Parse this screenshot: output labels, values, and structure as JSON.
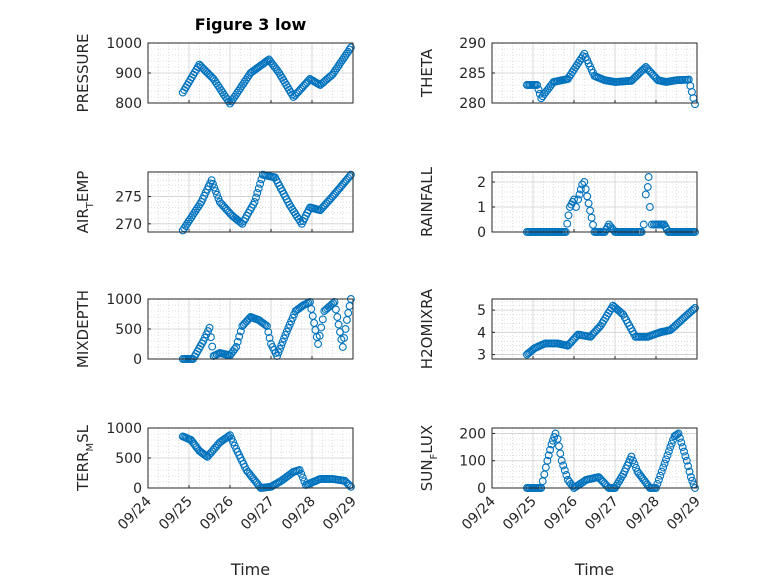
{
  "figure": {
    "title": "Figure 3 low",
    "x_axis_label": "Time",
    "x_tick_labels": [
      "09/24",
      "09/25",
      "09/26",
      "09/27",
      "09/28",
      "09/29"
    ],
    "marker_color": "#0072bd"
  },
  "chart_data": [
    {
      "type": "scatter",
      "ylabel": "PRESSURE",
      "ylim": [
        800,
        1000
      ],
      "yticks": [
        800,
        900,
        1000
      ],
      "xlim": [
        "09/24",
        "09/29"
      ],
      "grid": true,
      "x": [
        0.85,
        1.25,
        1.6,
        2.0,
        2.5,
        2.95,
        3.2,
        3.55,
        3.95,
        4.2,
        4.5,
        4.95
      ],
      "y": [
        835,
        928,
        880,
        798,
        900,
        945,
        900,
        820,
        880,
        860,
        895,
        985
      ],
      "title": "Figure 3 low"
    },
    {
      "type": "scatter",
      "ylabel": "THETA",
      "ylim": [
        280,
        290
      ],
      "yticks": [
        280,
        285,
        290
      ],
      "xlim": [
        "09/24",
        "09/29"
      ],
      "grid": true,
      "x": [
        0.85,
        1.1,
        1.2,
        1.5,
        1.85,
        2.25,
        2.5,
        2.75,
        3.0,
        3.4,
        3.75,
        4.05,
        4.25,
        4.5,
        4.8,
        4.95
      ],
      "y": [
        283,
        283,
        280.8,
        283.5,
        284,
        288.2,
        284.5,
        283.8,
        283.5,
        283.7,
        286,
        283.8,
        283.5,
        283.8,
        283.9,
        279.8
      ]
    },
    {
      "type": "scatter",
      "ylabel": "AIR_TEMP",
      "ylabel_parts": [
        "AIR",
        "T",
        "EMP"
      ],
      "ylim": [
        268.5,
        279.5
      ],
      "yticks": [
        270,
        275,
        280
      ],
      "xlim": [
        "09/24",
        "09/29"
      ],
      "grid": true,
      "x": [
        0.85,
        1.3,
        1.55,
        1.75,
        2.05,
        2.3,
        2.6,
        2.8,
        3.1,
        3.45,
        3.75,
        3.95,
        4.2,
        4.5,
        4.95
      ],
      "y": [
        268.8,
        274,
        278,
        274,
        271.5,
        270,
        274,
        279,
        278.5,
        273.5,
        270,
        273,
        272.5,
        275,
        279
      ]
    },
    {
      "type": "scatter",
      "ylabel": "RAINFALL",
      "ylim": [
        0,
        2.4
      ],
      "yticks": [
        0,
        1,
        2
      ],
      "xlim": [
        "09/24",
        "09/29"
      ],
      "grid": true,
      "x": [
        0.85,
        1.4,
        1.8,
        1.9,
        2.0,
        2.05,
        2.1,
        2.2,
        2.25,
        2.5,
        2.75,
        2.85,
        3.0,
        3.1,
        3.2,
        3.4,
        3.5,
        3.55,
        3.65,
        3.7,
        3.75,
        3.8,
        3.82,
        3.85,
        3.9,
        3.95,
        4.1,
        4.2,
        4.3,
        4.5,
        4.95
      ],
      "y": [
        0,
        0,
        0,
        1.0,
        1.3,
        1.0,
        1.3,
        1.9,
        2.0,
        0,
        0,
        0.3,
        0,
        0,
        0,
        0,
        0,
        0,
        0,
        0.3,
        1.5,
        1.8,
        2.2,
        1.0,
        0.3,
        0.3,
        0.3,
        0.3,
        0,
        0,
        0
      ]
    },
    {
      "type": "scatter",
      "ylabel": "MIXDEPTH",
      "ylim": [
        0,
        1000
      ],
      "yticks": [
        0,
        500,
        1000
      ],
      "xlim": [
        "09/24",
        "09/29"
      ],
      "grid": true,
      "x": [
        0.85,
        1.1,
        1.35,
        1.5,
        1.6,
        1.75,
        2.0,
        2.15,
        2.3,
        2.5,
        2.7,
        2.9,
        3.0,
        3.15,
        3.35,
        3.6,
        3.8,
        3.95,
        4.15,
        4.3,
        4.55,
        4.75,
        4.85,
        4.95
      ],
      "y": [
        0,
        0,
        300,
        520,
        50,
        100,
        60,
        200,
        550,
        700,
        650,
        550,
        250,
        50,
        400,
        800,
        900,
        950,
        250,
        800,
        950,
        200,
        650,
        1000
      ]
    },
    {
      "type": "scatter",
      "ylabel": "H2OMIXRA",
      "ylim": [
        2.8,
        5.5
      ],
      "yticks": [
        3,
        4,
        5
      ],
      "xlim": [
        "09/24",
        "09/29"
      ],
      "grid": true,
      "x": [
        0.85,
        1.05,
        1.3,
        1.6,
        1.85,
        2.1,
        2.4,
        2.65,
        2.95,
        3.2,
        3.5,
        3.8,
        4.1,
        4.35,
        4.65,
        4.95
      ],
      "y": [
        3.0,
        3.3,
        3.5,
        3.5,
        3.4,
        3.9,
        3.8,
        4.3,
        5.2,
        4.8,
        3.8,
        3.8,
        4.0,
        4.1,
        4.6,
        5.1
      ]
    },
    {
      "type": "scatter",
      "ylabel": "TERR_MSL",
      "ylabel_parts": [
        "TERR",
        "M",
        "SL"
      ],
      "ylim": [
        0,
        1000
      ],
      "yticks": [
        0,
        500,
        1000
      ],
      "xlim": [
        "09/24",
        "09/29"
      ],
      "grid": true,
      "x": [
        0.85,
        1.05,
        1.25,
        1.45,
        1.75,
        2.0,
        2.15,
        2.4,
        2.75,
        3.0,
        3.25,
        3.55,
        3.7,
        3.85,
        4.2,
        4.5,
        4.8,
        4.95
      ],
      "y": [
        860,
        800,
        620,
        520,
        760,
        880,
        650,
        300,
        0,
        20,
        120,
        270,
        300,
        50,
        150,
        150,
        120,
        20
      ]
    },
    {
      "type": "scatter",
      "ylabel": "SUN_FLUX",
      "ylabel_parts": [
        "SUN",
        "F",
        "LUX"
      ],
      "ylim": [
        0,
        220
      ],
      "yticks": [
        0,
        100,
        200
      ],
      "xlim": [
        "09/24",
        "09/29"
      ],
      "grid": true,
      "x": [
        0.85,
        1.2,
        1.35,
        1.45,
        1.55,
        1.6,
        1.7,
        1.85,
        2.0,
        2.3,
        2.6,
        2.85,
        3.0,
        3.2,
        3.4,
        3.55,
        3.75,
        3.85,
        4.0,
        4.35,
        4.45,
        4.55,
        4.65,
        4.75,
        4.85,
        4.95
      ],
      "y": [
        0,
        0,
        100,
        160,
        200,
        180,
        100,
        30,
        0,
        30,
        40,
        0,
        0,
        50,
        115,
        60,
        20,
        0,
        0,
        150,
        190,
        200,
        150,
        100,
        40,
        0
      ]
    }
  ]
}
